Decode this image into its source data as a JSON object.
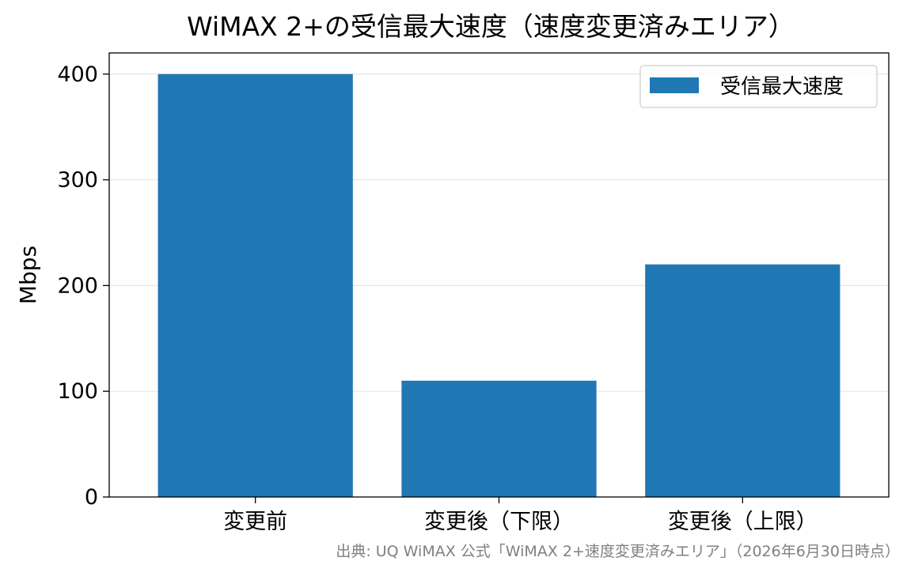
{
  "chart_data": {
    "type": "bar",
    "title": "WiMAX 2+の受信最大速度（速度変更済みエリア）",
    "xlabel": "",
    "ylabel": "Mbps",
    "categories": [
      "変更前",
      "変更後（下限）",
      "変更後（上限）"
    ],
    "series": [
      {
        "name": "受信最大速度",
        "values": [
          400,
          110,
          220
        ],
        "color": "#1f77b4"
      }
    ],
    "ylim": [
      0,
      420
    ],
    "yticks": [
      0,
      100,
      200,
      300,
      400
    ],
    "grid": "y",
    "legend_position": "top-right",
    "source_note": "出典: UQ WiMAX 公式「WiMAX 2+速度変更済みエリア」（2026年6月30日時点）"
  }
}
